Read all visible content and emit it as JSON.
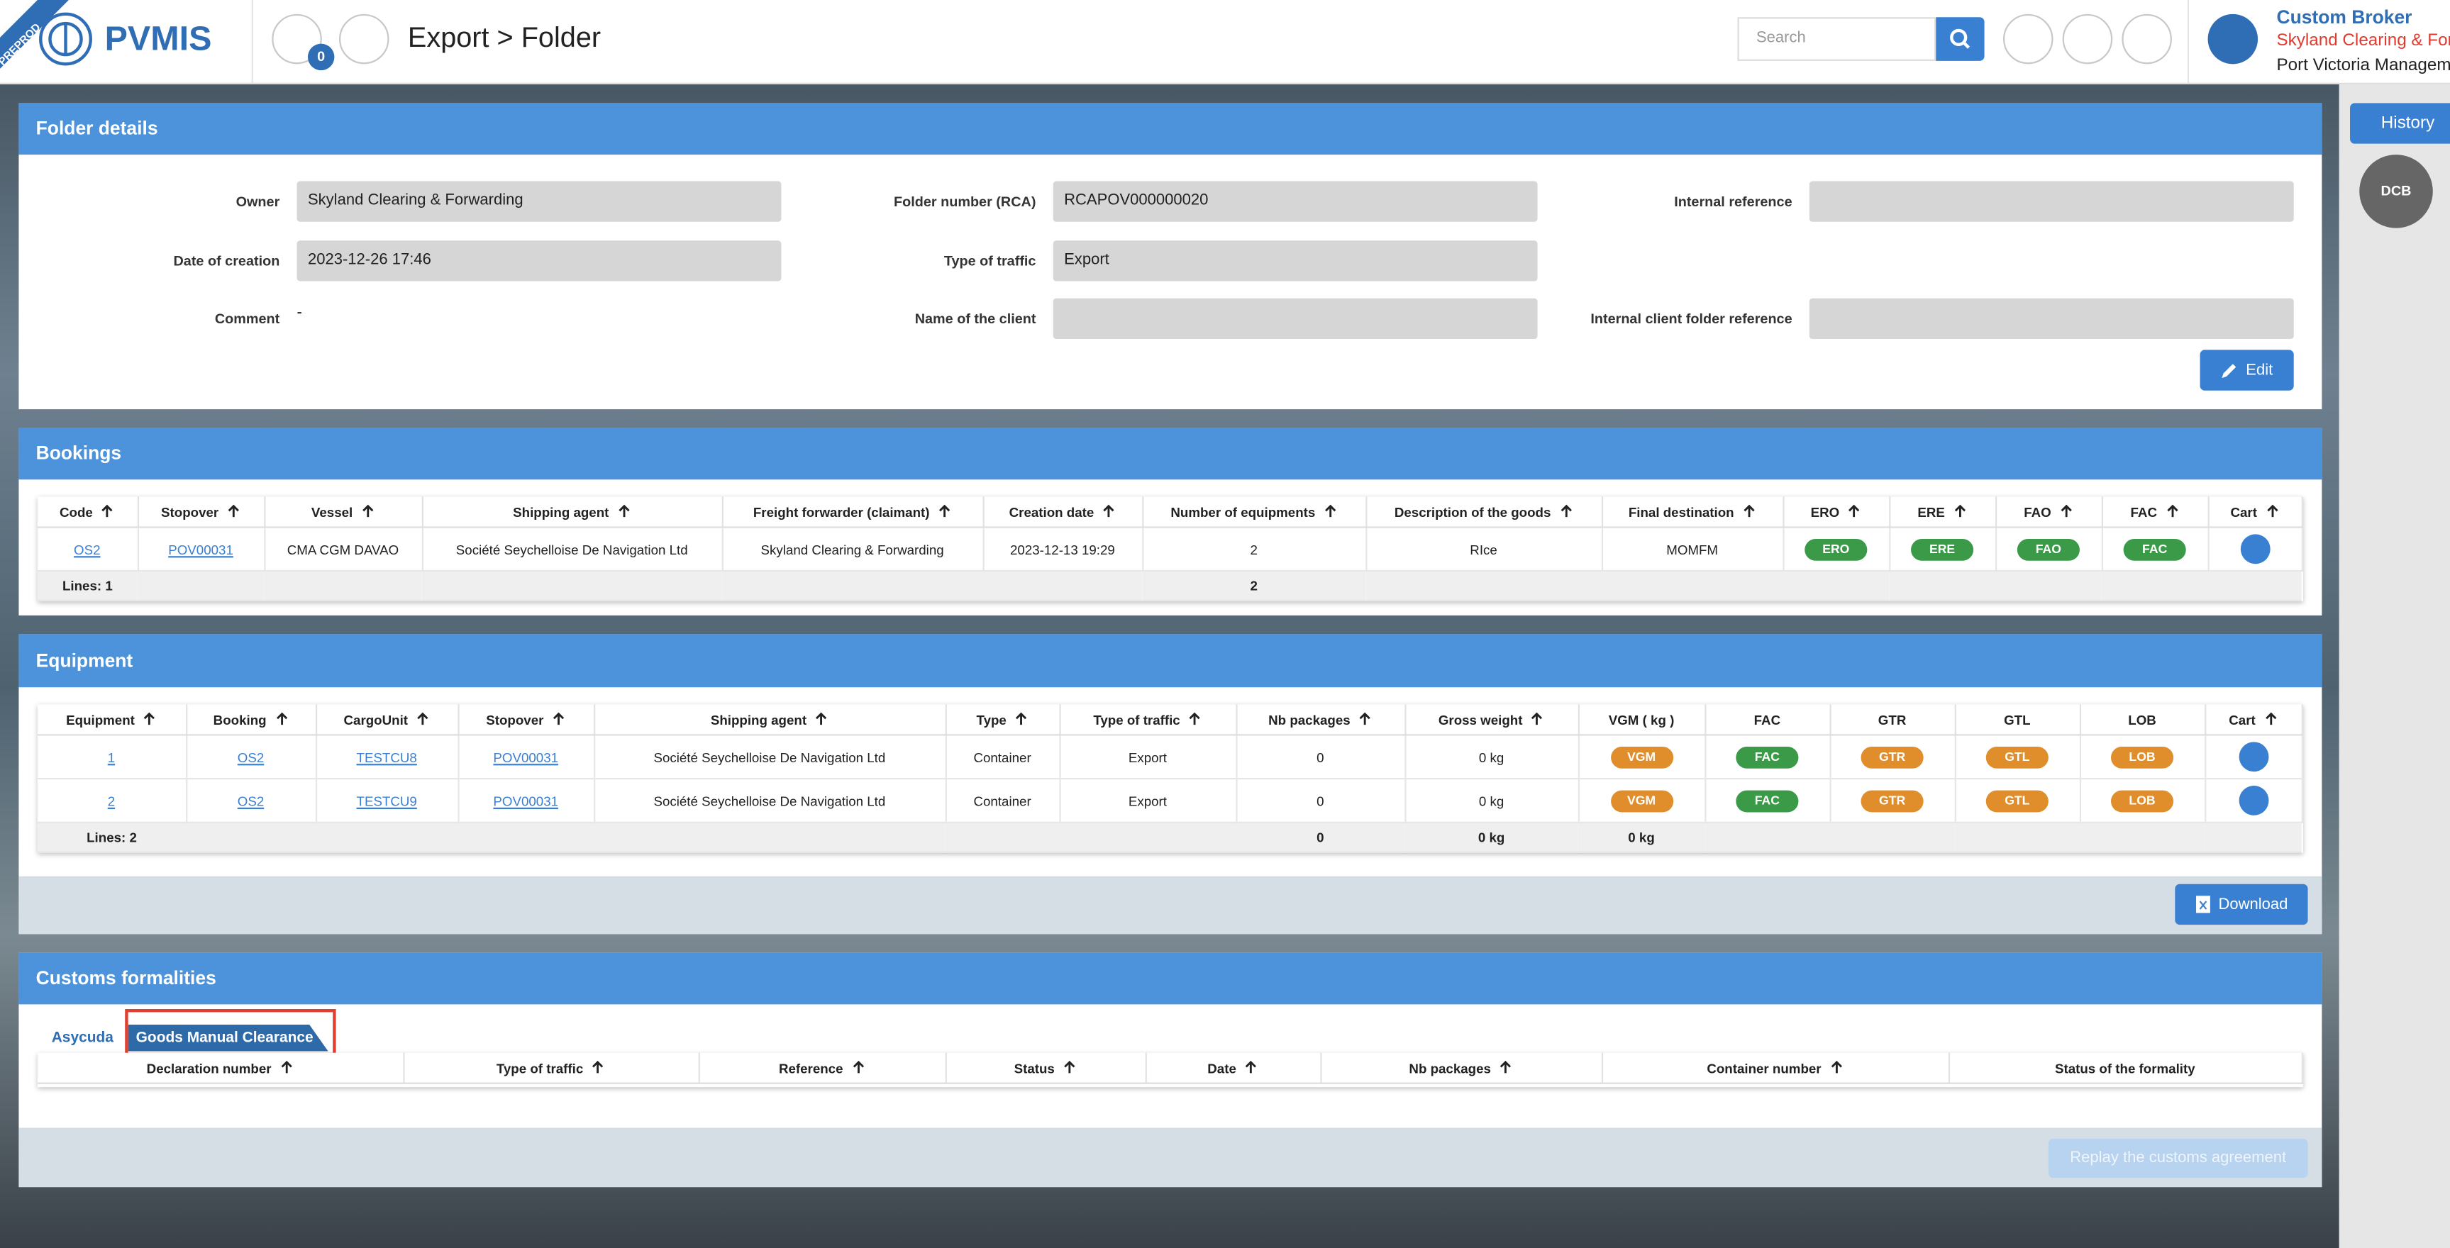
{
  "header": {
    "badge": "PREPROD",
    "brand": "PVMIS",
    "notification_count": "0",
    "breadcrumb": "Export > Folder",
    "search_placeholder": "Search",
    "user": {
      "role": "Custom Broker",
      "company": "Skyland Clearing & For",
      "organization": "Port Victoria Managem"
    }
  },
  "sidebar": {
    "history": "History",
    "avatar": "DCB"
  },
  "folder_details": {
    "title": "Folder details",
    "fields": [
      [
        {
          "label": "Owner",
          "value": "Skyland Clearing & Forwarding"
        },
        {
          "label": "Folder number (RCA)",
          "value": "RCAPOV000000020"
        },
        {
          "label": "Internal reference"
        }
      ],
      [
        {
          "label": "Date of creation",
          "value": "2023-12-26 17:46"
        },
        {
          "label": "Type of traffic",
          "value": "Export"
        }
      ],
      [
        {
          "label": "Comment",
          "value": "-"
        },
        {
          "label": "Name of the client"
        },
        {
          "label": "Internal client folder reference"
        }
      ]
    ],
    "edit": "Edit"
  },
  "bookings": {
    "title": "Bookings",
    "columns": [
      "Code",
      "Stopover",
      "Vessel",
      "Shipping agent",
      "Freight forwarder (claimant)",
      "Creation date",
      "Number of equipments",
      "Description of the goods",
      "Final destination",
      "ERO",
      "ERE",
      "FAO",
      "FAC",
      "Cart"
    ],
    "rows": [
      [
        "OS2",
        "POV00031",
        "CMA CGM DAVAO",
        "Société Seychelloise De Navigation Ltd",
        "Skyland Clearing & Forwarding",
        "2023-12-13 19:29",
        "2",
        "RIce",
        "MOMFM",
        "ERO",
        "ERE",
        "FAO",
        "FAC",
        null
      ]
    ],
    "footer": [
      "Lines: 1",
      null,
      null,
      null,
      null,
      null,
      "2",
      null,
      null,
      null,
      null,
      null,
      null,
      null
    ]
  },
  "equipment": {
    "title": "Equipment",
    "columns": [
      "Equipment",
      "Booking",
      "CargoUnit",
      "Stopover",
      "Shipping agent",
      "Type",
      "Type of traffic",
      "Nb packages",
      "Gross weight",
      "VGM  ( kg )",
      "FAC",
      "GTR",
      "GTL",
      "LOB",
      "Cart"
    ],
    "rows": [
      [
        "1",
        "OS2",
        "TESTCU8",
        "POV00031",
        "Société Seychelloise De Navigation Ltd",
        "Container",
        "Export",
        "0",
        "0 kg",
        "VGM",
        "FAC",
        "GTR",
        "GTL",
        "LOB",
        null
      ],
      [
        "2",
        "OS2",
        "TESTCU9",
        "POV00031",
        "Société Seychelloise De Navigation Ltd",
        "Container",
        "Export",
        "0",
        "0 kg",
        "VGM",
        "FAC",
        "GTR",
        "GTL",
        "LOB",
        null
      ]
    ],
    "footer": [
      "Lines: 2",
      null,
      null,
      null,
      null,
      null,
      null,
      "0",
      "0 kg",
      "0 kg",
      null,
      null,
      null,
      null,
      null
    ],
    "download": "Download"
  },
  "customs": {
    "title": "Customs formalities",
    "tabs": [
      "Asycuda",
      "Goods Manual Clearance"
    ],
    "columns": [
      "Declaration number",
      "Type of traffic",
      "Reference",
      "Status",
      "Date",
      "Nb packages",
      "Container number",
      "Status of the formality"
    ],
    "replay": "Replay the customs agreement"
  }
}
